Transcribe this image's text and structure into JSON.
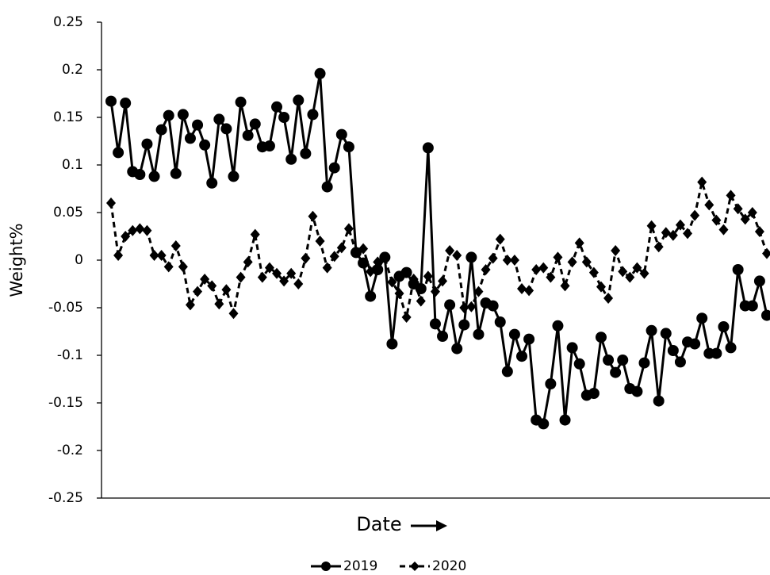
{
  "chart_data": {
    "type": "line",
    "xlabel": "Date",
    "ylabel": "Weight%",
    "categories": [
      null,
      null,
      null,
      null,
      null,
      null,
      null,
      null,
      null,
      null,
      null,
      null,
      null,
      null,
      null,
      null,
      null,
      null,
      null,
      null,
      null,
      null,
      null,
      null,
      null,
      null,
      null,
      null,
      null,
      null,
      null,
      null,
      null,
      null,
      null,
      null,
      null,
      null,
      null,
      null,
      null,
      null,
      null,
      null,
      null,
      null,
      null,
      null,
      null,
      null,
      null,
      null,
      null,
      null,
      null,
      null,
      null,
      null,
      null,
      null,
      null,
      null,
      null,
      null,
      null,
      null,
      null,
      null,
      null,
      null,
      null,
      null,
      null,
      null,
      null,
      null,
      null,
      null,
      null,
      null,
      null,
      null,
      null,
      null,
      null,
      null,
      null,
      null,
      null,
      null,
      null,
      null
    ],
    "ylim": [
      -0.25,
      0.25
    ],
    "yticks": [
      0.25,
      0.2,
      0.15,
      0.1,
      0.05,
      0,
      -0.05,
      -0.1,
      -0.15,
      -0.2,
      -0.25
    ],
    "legend": "bottom",
    "series": [
      {
        "name": "2019",
        "color": "#000000",
        "style": "solid",
        "marker": "circle",
        "values": [
          0.167,
          0.113,
          0.165,
          0.093,
          0.09,
          0.122,
          0.088,
          0.137,
          0.152,
          0.091,
          0.153,
          0.128,
          0.142,
          0.121,
          0.081,
          0.148,
          0.138,
          0.088,
          0.166,
          0.131,
          0.143,
          0.119,
          0.12,
          0.161,
          0.15,
          0.106,
          0.168,
          0.112,
          0.153,
          0.196,
          0.077,
          0.097,
          0.132,
          0.119,
          0.008,
          -0.003,
          -0.038,
          -0.01,
          0.003,
          -0.088,
          -0.017,
          -0.013,
          -0.025,
          -0.03,
          0.118,
          -0.067,
          -0.08,
          -0.047,
          -0.093,
          -0.068,
          0.003,
          -0.078,
          -0.045,
          -0.048,
          -0.065,
          -0.117,
          -0.078,
          -0.101,
          -0.083,
          -0.168,
          -0.172,
          -0.13,
          -0.069,
          -0.168,
          -0.092,
          -0.109,
          -0.142,
          -0.14,
          -0.081,
          -0.105,
          -0.118,
          -0.105,
          -0.135,
          -0.138,
          -0.108,
          -0.074,
          -0.148,
          -0.077,
          -0.095,
          -0.107,
          -0.086,
          -0.088,
          -0.061,
          -0.098,
          -0.098,
          -0.07,
          -0.092,
          -0.01,
          -0.048,
          -0.048,
          -0.022,
          -0.058
        ]
      },
      {
        "name": "2020",
        "color": "#000000",
        "style": "dashed",
        "marker": "diamond",
        "values": [
          0.06,
          0.005,
          0.025,
          0.031,
          0.033,
          0.031,
          0.005,
          0.005,
          -0.007,
          0.015,
          -0.007,
          -0.047,
          -0.033,
          -0.02,
          -0.027,
          -0.046,
          -0.031,
          -0.056,
          -0.018,
          -0.002,
          0.027,
          -0.018,
          -0.008,
          -0.014,
          -0.022,
          -0.014,
          -0.025,
          0.002,
          0.046,
          0.02,
          -0.008,
          0.004,
          0.013,
          0.033,
          0.008,
          0.012,
          -0.012,
          -0.002,
          0.002,
          -0.023,
          -0.035,
          -0.06,
          -0.02,
          -0.043,
          -0.017,
          -0.033,
          -0.022,
          0.01,
          0.005,
          -0.05,
          -0.049,
          -0.033,
          -0.01,
          0.002,
          0.022,
          0.0,
          0.0,
          -0.03,
          -0.032,
          -0.01,
          -0.008,
          -0.018,
          0.003,
          -0.027,
          -0.002,
          0.018,
          -0.002,
          -0.013,
          -0.028,
          -0.04,
          0.01,
          -0.012,
          -0.018,
          -0.008,
          -0.014,
          0.036,
          0.014,
          0.029,
          0.026,
          0.037,
          0.028,
          0.047,
          0.082,
          0.058,
          0.042,
          0.032,
          0.068,
          0.054,
          0.043,
          0.05,
          0.03,
          0.007
        ]
      }
    ]
  }
}
